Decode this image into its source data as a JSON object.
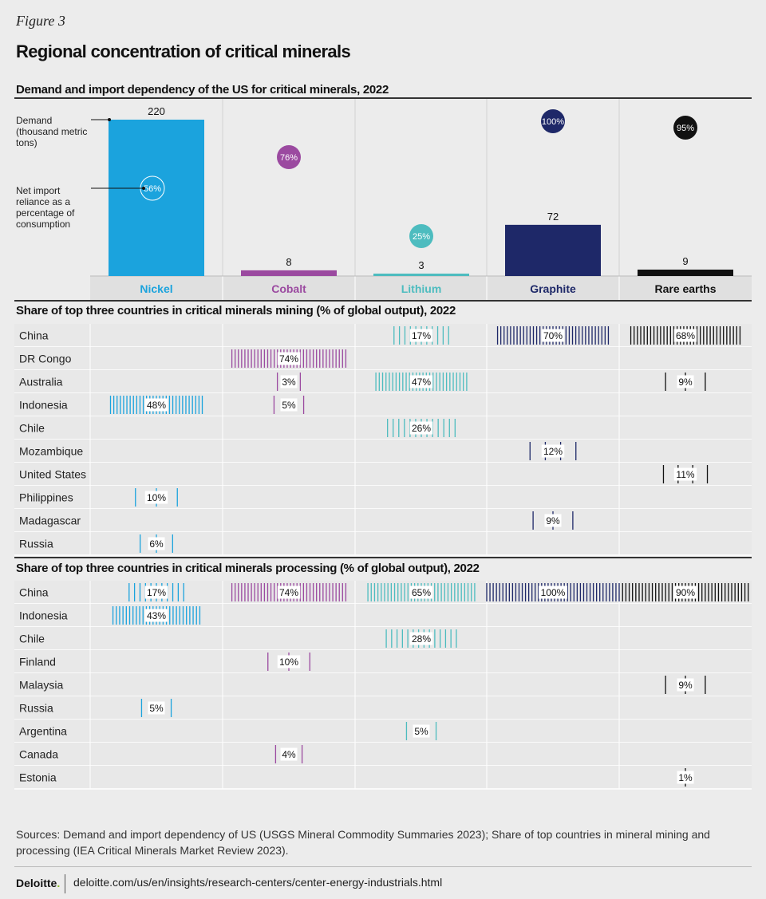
{
  "figure_label": "Figure 3",
  "title": "Regional concentration of critical minerals",
  "sections": {
    "demand": "Demand and import dependency of the US for critical minerals, 2022",
    "mining": "Share of top three countries in critical minerals mining (% of global output), 2022",
    "processing": "Share of top three countries in critical minerals processing (% of global output), 2022"
  },
  "annotations": {
    "demand": "Demand (thousand metric tons)",
    "reliance": "Net import reliance as a percentage of consumption"
  },
  "colors": {
    "Nickel": "#1ba3dd",
    "Cobalt": "#9b4aa0",
    "Lithium": "#4dbcbf",
    "Graphite": "#1e2868",
    "Rare earths": "#111111"
  },
  "chart_data": [
    {
      "type": "bar",
      "categories": [
        "Nickel",
        "Cobalt",
        "Lithium",
        "Graphite",
        "Rare earths"
      ],
      "series": [
        {
          "name": "Demand (thousand metric tons)",
          "values": [
            220,
            8,
            3,
            72,
            9
          ]
        },
        {
          "name": "Net import reliance as a percentage of consumption",
          "values": [
            56,
            76,
            25,
            100,
            95
          ],
          "labels": [
            "56%",
            "76%",
            "25%",
            "100%",
            "95%"
          ]
        }
      ],
      "ylim": [
        0,
        220
      ]
    },
    {
      "type": "table",
      "title": "Share of top three countries in critical minerals mining (% of global output), 2022",
      "columns": [
        "Nickel",
        "Cobalt",
        "Lithium",
        "Graphite",
        "Rare earths"
      ],
      "rows": [
        {
          "country": "China",
          "values": {
            "Lithium": "17%",
            "Graphite": "70%",
            "Rare earths": "68%"
          }
        },
        {
          "country": "DR Congo",
          "values": {
            "Cobalt": "74%"
          }
        },
        {
          "country": "Australia",
          "values": {
            "Cobalt": "3%",
            "Lithium": "47%",
            "Rare earths": "9%"
          }
        },
        {
          "country": "Indonesia",
          "values": {
            "Nickel": "48%",
            "Cobalt": "5%"
          }
        },
        {
          "country": "Chile",
          "values": {
            "Lithium": "26%"
          }
        },
        {
          "country": "Mozambique",
          "values": {
            "Graphite": "12%"
          }
        },
        {
          "country": "United States",
          "values": {
            "Rare earths": "11%"
          }
        },
        {
          "country": "Philippines",
          "values": {
            "Nickel": "10%"
          }
        },
        {
          "country": "Madagascar",
          "values": {
            "Graphite": "9%"
          }
        },
        {
          "country": "Russia",
          "values": {
            "Nickel": "6%"
          }
        }
      ]
    },
    {
      "type": "table",
      "title": "Share of top three countries in critical minerals processing (% of global output), 2022",
      "columns": [
        "Nickel",
        "Cobalt",
        "Lithium",
        "Graphite",
        "Rare earths"
      ],
      "rows": [
        {
          "country": "China",
          "values": {
            "Nickel": "17%",
            "Cobalt": "74%",
            "Lithium": "65%",
            "Graphite": "100%",
            "Rare earths": "90%"
          }
        },
        {
          "country": "Indonesia",
          "values": {
            "Nickel": "43%"
          }
        },
        {
          "country": "Chile",
          "values": {
            "Lithium": "28%"
          }
        },
        {
          "country": "Finland",
          "values": {
            "Cobalt": "10%"
          }
        },
        {
          "country": "Malaysia",
          "values": {
            "Rare earths": "9%"
          }
        },
        {
          "country": "Russia",
          "values": {
            "Nickel": "5%"
          }
        },
        {
          "country": "Argentina",
          "values": {
            "Lithium": "5%"
          }
        },
        {
          "country": "Canada",
          "values": {
            "Cobalt": "4%"
          }
        },
        {
          "country": "Estonia",
          "values": {
            "Rare earths": "1%"
          }
        }
      ]
    }
  ],
  "sources": "Sources: Demand and import dependency of US (USGS Mineral Commodity Summaries 2023); Share of top countries in mineral mining and processing (IEA Critical Minerals Market Review 2023).",
  "footer": {
    "logo": "Deloitte",
    "logo_dot": ".",
    "url": "deloitte.com/us/en/insights/research-centers/center-energy-industrials.html"
  }
}
